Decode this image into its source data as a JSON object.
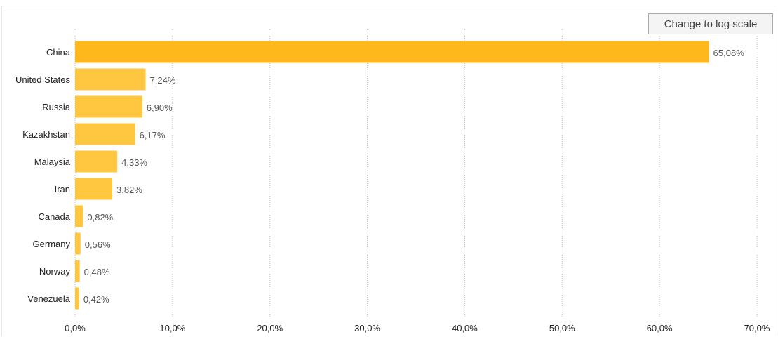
{
  "controls": {
    "scale_button_label": "Change to log scale"
  },
  "colors": {
    "top_bar": "#ffb81c",
    "other_bars": "#ffc640",
    "grid": "#bdbdbd"
  },
  "chart_data": {
    "type": "bar",
    "orientation": "horizontal",
    "categories": [
      "China",
      "United States",
      "Russia",
      "Kazakhstan",
      "Malaysia",
      "Iran",
      "Canada",
      "Germany",
      "Norway",
      "Venezuela"
    ],
    "values": [
      65.08,
      7.24,
      6.9,
      6.17,
      4.33,
      3.82,
      0.82,
      0.56,
      0.48,
      0.42
    ],
    "value_labels": [
      "65,08%",
      "7,24%",
      "6,90%",
      "6,17%",
      "4,33%",
      "3,82%",
      "0,82%",
      "0,56%",
      "0,48%",
      "0,42%"
    ],
    "x_ticks": [
      0,
      10,
      20,
      30,
      40,
      50,
      60,
      70
    ],
    "x_tick_labels": [
      "0,0%",
      "10,0%",
      "20,0%",
      "30,0%",
      "40,0%",
      "50,0%",
      "60,0%",
      "70,0%"
    ],
    "xlim": [
      0,
      70
    ],
    "grid": true,
    "scale": "linear"
  }
}
